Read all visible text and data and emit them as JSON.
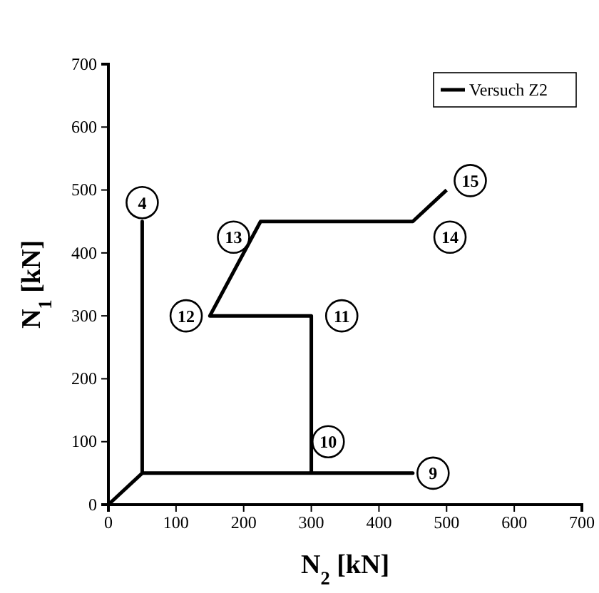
{
  "chart_data": {
    "type": "line",
    "xlabel": "N$_{2}$ [kN]",
    "ylabel": "N$_{1}$ [kN]",
    "xlim": [
      0,
      700
    ],
    "ylim": [
      0,
      700
    ],
    "xticks": [
      0,
      100,
      200,
      300,
      400,
      500,
      600,
      700
    ],
    "yticks": [
      0,
      100,
      200,
      300,
      400,
      500,
      600,
      700
    ],
    "grid": false,
    "legend": "top right",
    "marker": "none",
    "line_style": "solid",
    "series": [
      {
        "name": "Versuch Z2",
        "color": "#000000",
        "x": [
          0,
          50,
          50,
          50,
          450,
          300,
          300,
          150,
          225,
          450,
          500
        ],
        "values": [
          0,
          50,
          450,
          50,
          50,
          50,
          300,
          300,
          450,
          450,
          500
        ]
      }
    ],
    "annotations": [
      {
        "text": "4",
        "x": 50,
        "y": 480
      },
      {
        "text": "9",
        "x": 480,
        "y": 50
      },
      {
        "text": "10",
        "x": 325,
        "y": 100
      },
      {
        "text": "11",
        "x": 345,
        "y": 300
      },
      {
        "text": "12",
        "x": 115,
        "y": 300
      },
      {
        "text": "13",
        "x": 185,
        "y": 425
      },
      {
        "text": "14",
        "x": 505,
        "y": 425
      },
      {
        "text": "15",
        "x": 535,
        "y": 515
      }
    ]
  }
}
